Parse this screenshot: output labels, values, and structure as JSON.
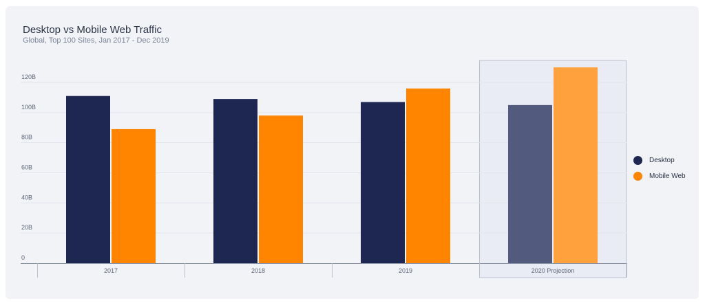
{
  "title": "Desktop vs Mobile Web Traffic",
  "subtitle": "Global, Top 100 Sites, Jan 2017 - Dec 2019",
  "colors": {
    "desktop": "#1d2751",
    "mobile": "#ff8500",
    "desktop_projection": "#525b7e",
    "mobile_projection": "#ffa23e"
  },
  "chart_data": {
    "type": "bar",
    "categories": [
      "2017",
      "2018",
      "2019",
      "2020 Projection"
    ],
    "series": [
      {
        "name": "Desktop",
        "values": [
          111,
          109,
          107,
          105
        ]
      },
      {
        "name": "Mobile Web",
        "values": [
          89,
          98,
          116,
          130
        ]
      }
    ],
    "yticks": [
      0,
      20,
      40,
      60,
      80,
      100,
      120
    ],
    "ytick_labels": [
      "0",
      "20B",
      "40B",
      "60B",
      "80B",
      "100B",
      "120B"
    ],
    "ylim": [
      0,
      120
    ],
    "units": "billions",
    "highlighted_category": "2020 Projection",
    "grid": true,
    "legend": "right"
  }
}
